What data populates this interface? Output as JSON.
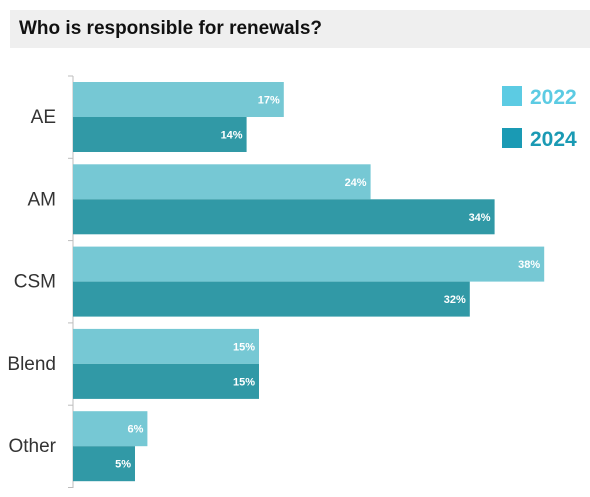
{
  "chart_data": {
    "type": "bar",
    "orientation": "horizontal",
    "title": "Who is responsible for renewals?",
    "categories": [
      "AE",
      "AM",
      "CSM",
      "Blend",
      "Other"
    ],
    "series": [
      {
        "name": "2022",
        "color": "#76c8d4",
        "values": [
          17,
          24,
          38,
          15,
          6
        ]
      },
      {
        "name": "2024",
        "color": "#3199a6",
        "values": [
          14,
          34,
          32,
          15,
          5
        ]
      }
    ],
    "value_suffix": "%",
    "xlim": [
      0,
      40
    ],
    "grid": false,
    "legend_position": "top-right"
  },
  "legend_colors": {
    "2022": "#5ccbe3",
    "2024": "#1a9ab4"
  }
}
